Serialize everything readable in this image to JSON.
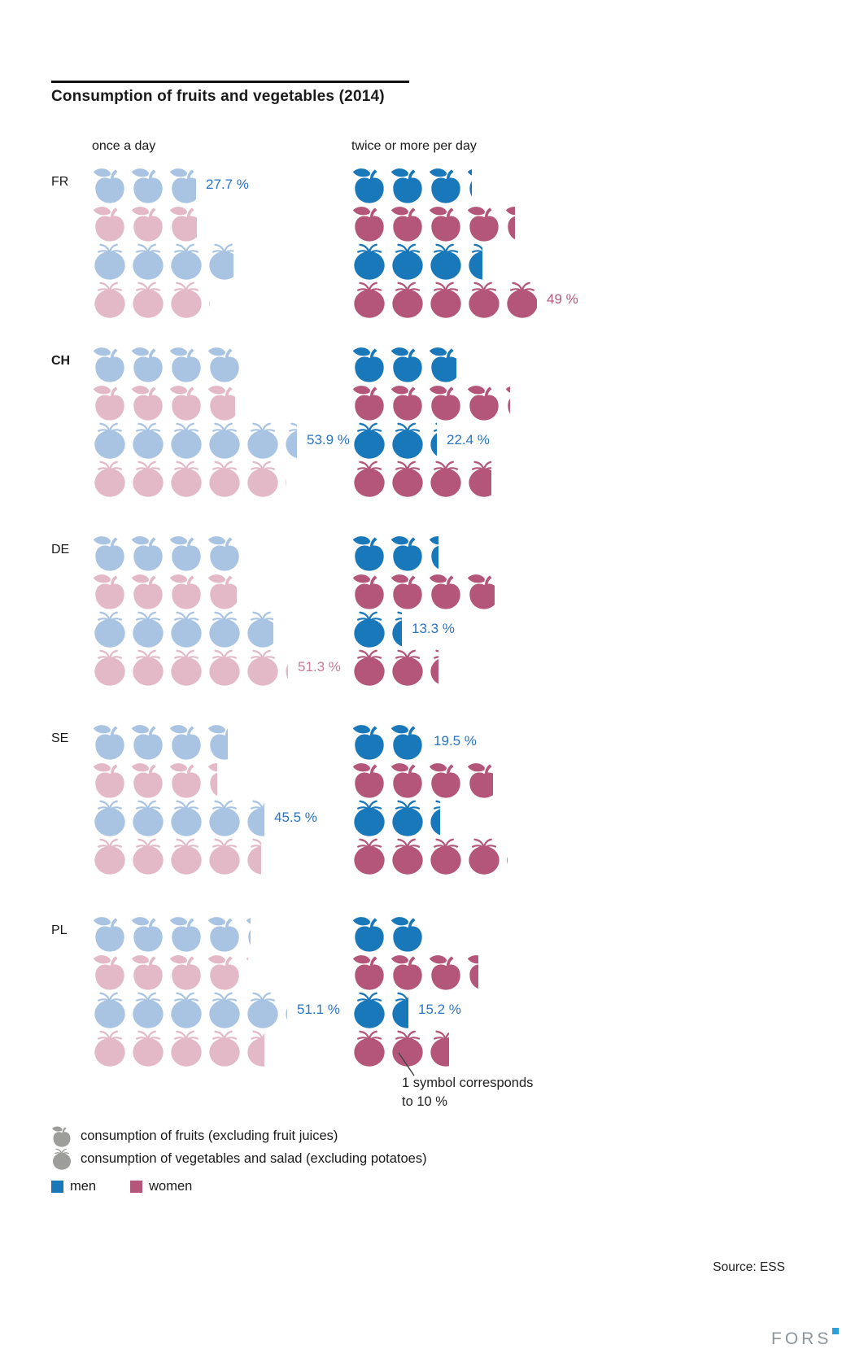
{
  "title": "Consumption of fruits and vegetables (2014)",
  "columns": {
    "once": "once a day",
    "twice": "twice or more per day"
  },
  "annotation": {
    "line1": "1 symbol corresponds",
    "line2": "to 10 %"
  },
  "legend": {
    "fruits_label": "consumption of fruits (excluding fruit juices)",
    "vegetables_label": "consumption of vegetables and salad (excluding potatoes)",
    "men_label": "men",
    "women_label": "women"
  },
  "source": "Source: ESS",
  "logo": "FORS",
  "colors": {
    "men_dark": "#1878ba",
    "men_light": "#a9c4e3",
    "women_dark": "#b4567a",
    "women_light": "#e3b9c8",
    "label_men": "#2b74c4",
    "label_women_dark": "#b4567a",
    "label_women_light": "#c97b97",
    "legend_gray": "#9d9d99",
    "fors_blue": "#2d9fd8",
    "text": "#1a1a1a"
  },
  "chart_data": {
    "type": "pictogram",
    "symbol_unit_percent": 10,
    "title": "Consumption of fruits and vegetables (2014)",
    "columns": [
      "once a day",
      "twice or more per day"
    ],
    "note": "1 symbol corresponds to 10 %",
    "countries": [
      {
        "code": "FR",
        "bold": false,
        "rows": [
          {
            "food": "fruit",
            "gender": "men",
            "once": 27.7,
            "twice": 31.5,
            "once_label": "27.7 %"
          },
          {
            "food": "fruit",
            "gender": "women",
            "once": 28.0,
            "twice": 43.0
          },
          {
            "food": "vegetable",
            "gender": "men",
            "once": 37.5,
            "twice": 34.5
          },
          {
            "food": "vegetable",
            "gender": "women",
            "once": 31.0,
            "twice": 49.0,
            "twice_label": "49 %"
          }
        ]
      },
      {
        "code": "CH",
        "bold": true,
        "rows": [
          {
            "food": "fruit",
            "gender": "men",
            "once": 39.0,
            "twice": 28.0
          },
          {
            "food": "fruit",
            "gender": "women",
            "once": 38.0,
            "twice": 41.5
          },
          {
            "food": "vegetable",
            "gender": "men",
            "once": 53.9,
            "twice": 22.4,
            "once_label": "53.9 %",
            "twice_label": "22.4 %"
          },
          {
            "food": "vegetable",
            "gender": "women",
            "once": 51.0,
            "twice": 37.0
          }
        ]
      },
      {
        "code": "DE",
        "bold": false,
        "rows": [
          {
            "food": "fruit",
            "gender": "men",
            "once": 40.0,
            "twice": 23.0
          },
          {
            "food": "fruit",
            "gender": "women",
            "once": 38.5,
            "twice": 38.0
          },
          {
            "food": "vegetable",
            "gender": "men",
            "once": 48.0,
            "twice": 13.3,
            "twice_label": "13.3 %"
          },
          {
            "food": "vegetable",
            "gender": "women",
            "once": 51.3,
            "twice": 23.0,
            "once_label": "51.3 %"
          }
        ]
      },
      {
        "code": "SE",
        "bold": false,
        "rows": [
          {
            "food": "fruit",
            "gender": "men",
            "once": 36.0,
            "twice": 19.5,
            "twice_label": "19.5 %"
          },
          {
            "food": "fruit",
            "gender": "women",
            "once": 33.0,
            "twice": 37.5
          },
          {
            "food": "vegetable",
            "gender": "men",
            "once": 45.5,
            "twice": 23.5,
            "once_label": "45.5 %"
          },
          {
            "food": "vegetable",
            "gender": "women",
            "once": 44.5,
            "twice": 41.0
          }
        ]
      },
      {
        "code": "PL",
        "bold": false,
        "rows": [
          {
            "food": "fruit",
            "gender": "men",
            "once": 41.5,
            "twice": 19.0
          },
          {
            "food": "fruit",
            "gender": "women",
            "once": 41.0,
            "twice": 33.5
          },
          {
            "food": "vegetable",
            "gender": "men",
            "once": 51.1,
            "twice": 15.2,
            "once_label": "51.1 %",
            "twice_label": "15.2 %"
          },
          {
            "food": "vegetable",
            "gender": "women",
            "once": 45.5,
            "twice": 26.0
          }
        ]
      }
    ]
  }
}
